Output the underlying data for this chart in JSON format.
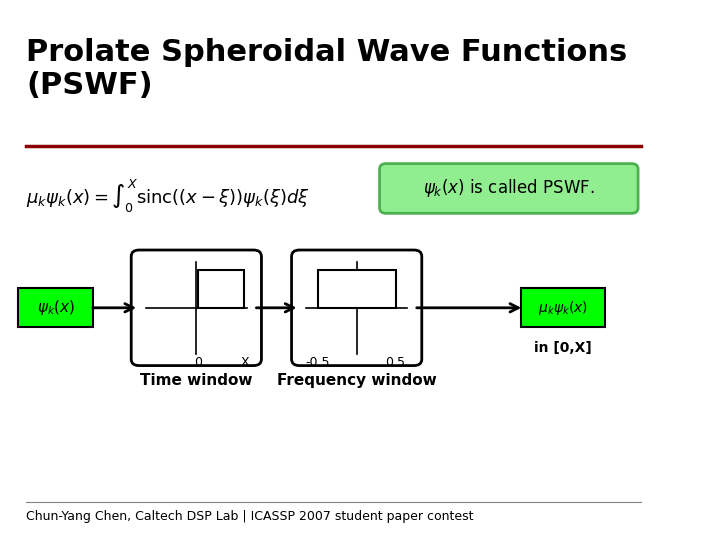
{
  "title": "Prolate Spheroidal Wave Functions\n(PSWF)",
  "title_fontsize": 22,
  "title_color": "#000000",
  "background_color": "#ffffff",
  "rule_color": "#8B0000",
  "formula": "$\\mu_k\\psi_k(x) = \\int_0^X \\mathrm{sinc}((x-\\xi))\\psi_k(\\xi)d\\xi$",
  "pswf_label_box": "$\\psi_k(x)$ is called PSWF.",
  "input_label": "$\\psi_k(x)$",
  "output_label": "$\\mu_k\\psi_k(x)$",
  "output_sublabel": "in [0,X]",
  "time_window_label": "Time window",
  "freq_window_label": "Frequency window",
  "time_tick0": "0",
  "time_tickX": "X",
  "freq_tick_neg": "-0.5",
  "freq_tick_pos": "0.5",
  "footer": "Chun-Yang Chen, Caltech DSP Lab | ICASSP 2007 student paper contest",
  "green_bright": "#00FF00",
  "green_box": "#90EE90",
  "green_box_border": "#4CAF50"
}
